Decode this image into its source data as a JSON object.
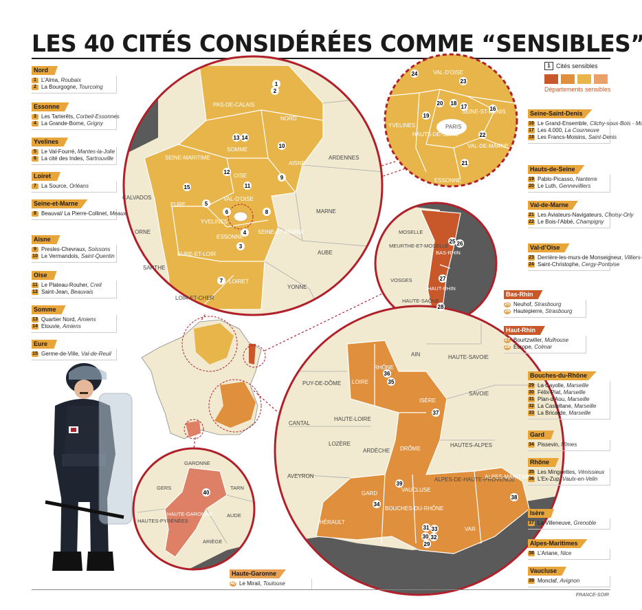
{
  "title": "LES 40 CITÉS CONSIDÉRÉES COMME “SENSIBLES”",
  "credit": "FRANCE-SOIR",
  "legend": {
    "num_sample": "1",
    "cites_label": "Cités sensibles",
    "departements_label": "Départements sensibles",
    "swatch_colors": [
      "#c8582a",
      "#e0903d",
      "#e8b54a",
      "#e9a06a"
    ]
  },
  "colors": {
    "dept_gold": "#e8b54a",
    "dept_orange": "#e0903d",
    "dept_red": "#c8582a",
    "dept_pink": "#de8066",
    "land": "#f2ead0",
    "sea": "#5a5a5a",
    "circle_border": "#b0202a"
  },
  "groups_left": [
    {
      "name": "Nord",
      "items": [
        {
          "n": "1",
          "name": "L’Alma,",
          "city": "Roubaix"
        },
        {
          "n": "2",
          "name": "La Bourgogne,",
          "city": "Tourcoing"
        }
      ]
    },
    {
      "name": "Essonne",
      "items": [
        {
          "n": "3",
          "name": "Les Tarterêts,",
          "city": "Corbeil-Essonnes"
        },
        {
          "n": "4",
          "name": "La Grande-Borne,",
          "city": "Grigny"
        }
      ]
    },
    {
      "name": "Yvelines",
      "items": [
        {
          "n": "5",
          "name": "Le Val-Fourré,",
          "city": "Mantes-la-Jolie"
        },
        {
          "n": "6",
          "name": "La cité des Indes,",
          "city": "Sartrouville"
        }
      ]
    },
    {
      "name": "Loiret",
      "items": [
        {
          "n": "7",
          "name": "La Source,",
          "city": "Orléans"
        }
      ]
    },
    {
      "name": "Seine-et-Marne",
      "items": [
        {
          "n": "8",
          "name": "Beauval/ La Pierre-Collinet,",
          "city": "Meaux"
        }
      ]
    },
    {
      "name": "Aisne",
      "items": [
        {
          "n": "9",
          "name": "Presles-Chevraux,",
          "city": "Soissons"
        },
        {
          "n": "10",
          "name": "Le Vermandois,",
          "city": "Saint-Quentin"
        }
      ]
    },
    {
      "name": "Oise",
      "items": [
        {
          "n": "11",
          "name": "Le Plateau-Rouher,",
          "city": "Creil"
        },
        {
          "n": "12",
          "name": "Saint-Jean,",
          "city": "Beauvais"
        }
      ]
    },
    {
      "name": "Somme",
      "items": [
        {
          "n": "13",
          "name": "Quartier Nord,",
          "city": "Amiens"
        },
        {
          "n": "14",
          "name": "Etouvie,",
          "city": "Amiens"
        }
      ]
    },
    {
      "name": "Eure",
      "items": [
        {
          "n": "15",
          "name": "Germe-de-Ville,",
          "city": "Val-de-Reuil"
        }
      ]
    }
  ],
  "groups_right": [
    {
      "name": "Seine-Saint-Denis",
      "items": [
        {
          "n": "16",
          "name": "Le Grand-Ensemble,",
          "city": "Clichy-sous-Bois - Montfermeil"
        },
        {
          "n": "17",
          "name": "Les 4.000,",
          "city": "La Courneuve"
        },
        {
          "n": "18",
          "name": "Les Francs-Moisins,",
          "city": "Saint-Denis"
        }
      ]
    },
    {
      "name": "Hauts-de-Seine",
      "items": [
        {
          "n": "19",
          "name": "Pablo-Picasso,",
          "city": "Nanterre"
        },
        {
          "n": "20",
          "name": "Le Luth,",
          "city": "Gennevilliers"
        }
      ]
    },
    {
      "name": "Val-de-Marne",
      "items": [
        {
          "n": "21",
          "name": "Les Aviateurs-Navigateurs,",
          "city": "Choisy-Orly"
        },
        {
          "n": "22",
          "name": "Le Bois-l’Abbé,",
          "city": "Champigny"
        }
      ]
    },
    {
      "name": "Val-d’Oise",
      "items": [
        {
          "n": "23",
          "name": "Derrière-les-murs-de Monseigneur,",
          "city": "Villiers-le-Bel"
        },
        {
          "n": "24",
          "name": "Saint-Christophe,",
          "city": "Cergy-Pontoise"
        }
      ]
    },
    {
      "name": "Bas-Rhin",
      "items": [
        {
          "n": "25",
          "name": "Neuhof,",
          "city": "Strasbourg"
        },
        {
          "n": "26",
          "name": "Hautepierre,",
          "city": "Strasbourg"
        }
      ]
    },
    {
      "name": "Haut-Rhin",
      "items": [
        {
          "n": "27",
          "name": "Bourtzwiller,",
          "city": "Mulhouse"
        },
        {
          "n": "28",
          "name": "Europe,",
          "city": "Colmar"
        }
      ]
    },
    {
      "name": "Bouches-du-Rhône",
      "items": [
        {
          "n": "29",
          "name": "La Cayolle,",
          "city": "Marseille"
        },
        {
          "n": "30",
          "name": "Félix-Piat,",
          "city": "Marseille"
        },
        {
          "n": "31",
          "name": "Plan-d’Aou,",
          "city": "Marseille"
        },
        {
          "n": "32",
          "name": "La Castellane,",
          "city": "Marseille"
        },
        {
          "n": "33",
          "name": "La Bricarde,",
          "city": "Marseille"
        }
      ]
    },
    {
      "name": "Gard",
      "items": [
        {
          "n": "34",
          "name": "Pissevin,",
          "city": "Nîmes"
        }
      ]
    },
    {
      "name": "Rhône",
      "items": [
        {
          "n": "35",
          "name": "Les Minguettes,",
          "city": "Vénissieux"
        },
        {
          "n": "36",
          "name": "L’Ex-Zup,",
          "city": "Vaulx-en-Velin"
        }
      ]
    },
    {
      "name": "Isère",
      "items": [
        {
          "n": "37",
          "name": "La Villeneuve,",
          "city": "Grenoble"
        }
      ]
    },
    {
      "name": "Alpes-Maritimes",
      "items": [
        {
          "n": "38",
          "name": "L’Ariane,",
          "city": "Nice"
        }
      ]
    },
    {
      "name": "Vaucluse",
      "items": [
        {
          "n": "39",
          "name": "Monclaf,",
          "city": "Avignon"
        }
      ]
    }
  ],
  "group_haute_garonne": {
    "name": "Haute-Garonne",
    "items": [
      {
        "n": "40",
        "name": "Le Mirail,",
        "city": "Toulouse"
      }
    ]
  },
  "map_north": {
    "dept_labels": [
      "PAS-DE-CALAIS",
      "NORD",
      "SOMME",
      "SEINE-MARITIME",
      "OISE",
      "AISNE",
      "ARDENNES",
      "CALVADOS",
      "EURE",
      "VAL-D’OISE",
      "YVELINES",
      "ESSONNE",
      "SEINE-ET-MARNE",
      "MARNE",
      "ORNE",
      "EURE-ET-LOIR",
      "AUBE",
      "LOIRET",
      "YONNE",
      "SARTHE",
      "LOIR-ET-CHER"
    ],
    "markers": [
      "1",
      "2",
      "3",
      "4",
      "5",
      "6",
      "7",
      "8",
      "9",
      "10",
      "11",
      "12",
      "13",
      "14",
      "15"
    ]
  },
  "map_idf": {
    "dept_labels": [
      "VAL-D’OISE",
      "YVELINES",
      "HAUTS-DE-SEINE",
      "PARIS",
      "SEINE-ST-DENIS",
      "VAL-DE-MARNE",
      "ESSONNE"
    ],
    "markers": [
      "16",
      "17",
      "18",
      "19",
      "20",
      "21",
      "22",
      "23",
      "24"
    ]
  },
  "map_alsace": {
    "dept_labels": [
      "MOSELLE",
      "MEURTHE-ET-MOSELLE",
      "BAS-RHIN",
      "VOSGES",
      "HAUT-RHIN",
      "HAUTE-SAÔNE"
    ],
    "markers": [
      "25",
      "26",
      "27",
      "28"
    ]
  },
  "map_south": {
    "dept_labels": [
      "AIN",
      "HAUTE-SAVOIE",
      "PUY-DE-DÔME",
      "LOIRE",
      "RHÔNE",
      "SAVOIE",
      "ISÈRE",
      "CANTAL",
      "HAUTE-LOIRE",
      "ARDÈCHE",
      "DRÔME",
      "HAUTES-ALPES",
      "LOZÈRE",
      "AVEYRON",
      "ALPES-DE-HAUTE-PROVENCE",
      "ALPES-MARITIMES",
      "GARD",
      "VAUCLUSE",
      "BOUCHES-DU-RHÔNE",
      "HÉRAULT",
      "VAR"
    ],
    "markers": [
      "29",
      "30",
      "31",
      "32",
      "33",
      "34",
      "35",
      "36",
      "37",
      "38",
      "39"
    ]
  },
  "map_toulouse": {
    "dept_labels": [
      "GARONNE",
      "TARN",
      "GERS",
      "HAUTE-GARONNE",
      "HAUTES-PYRÉNÉES",
      "AUDE",
      "ARIÈGE"
    ],
    "markers": [
      "40"
    ]
  }
}
